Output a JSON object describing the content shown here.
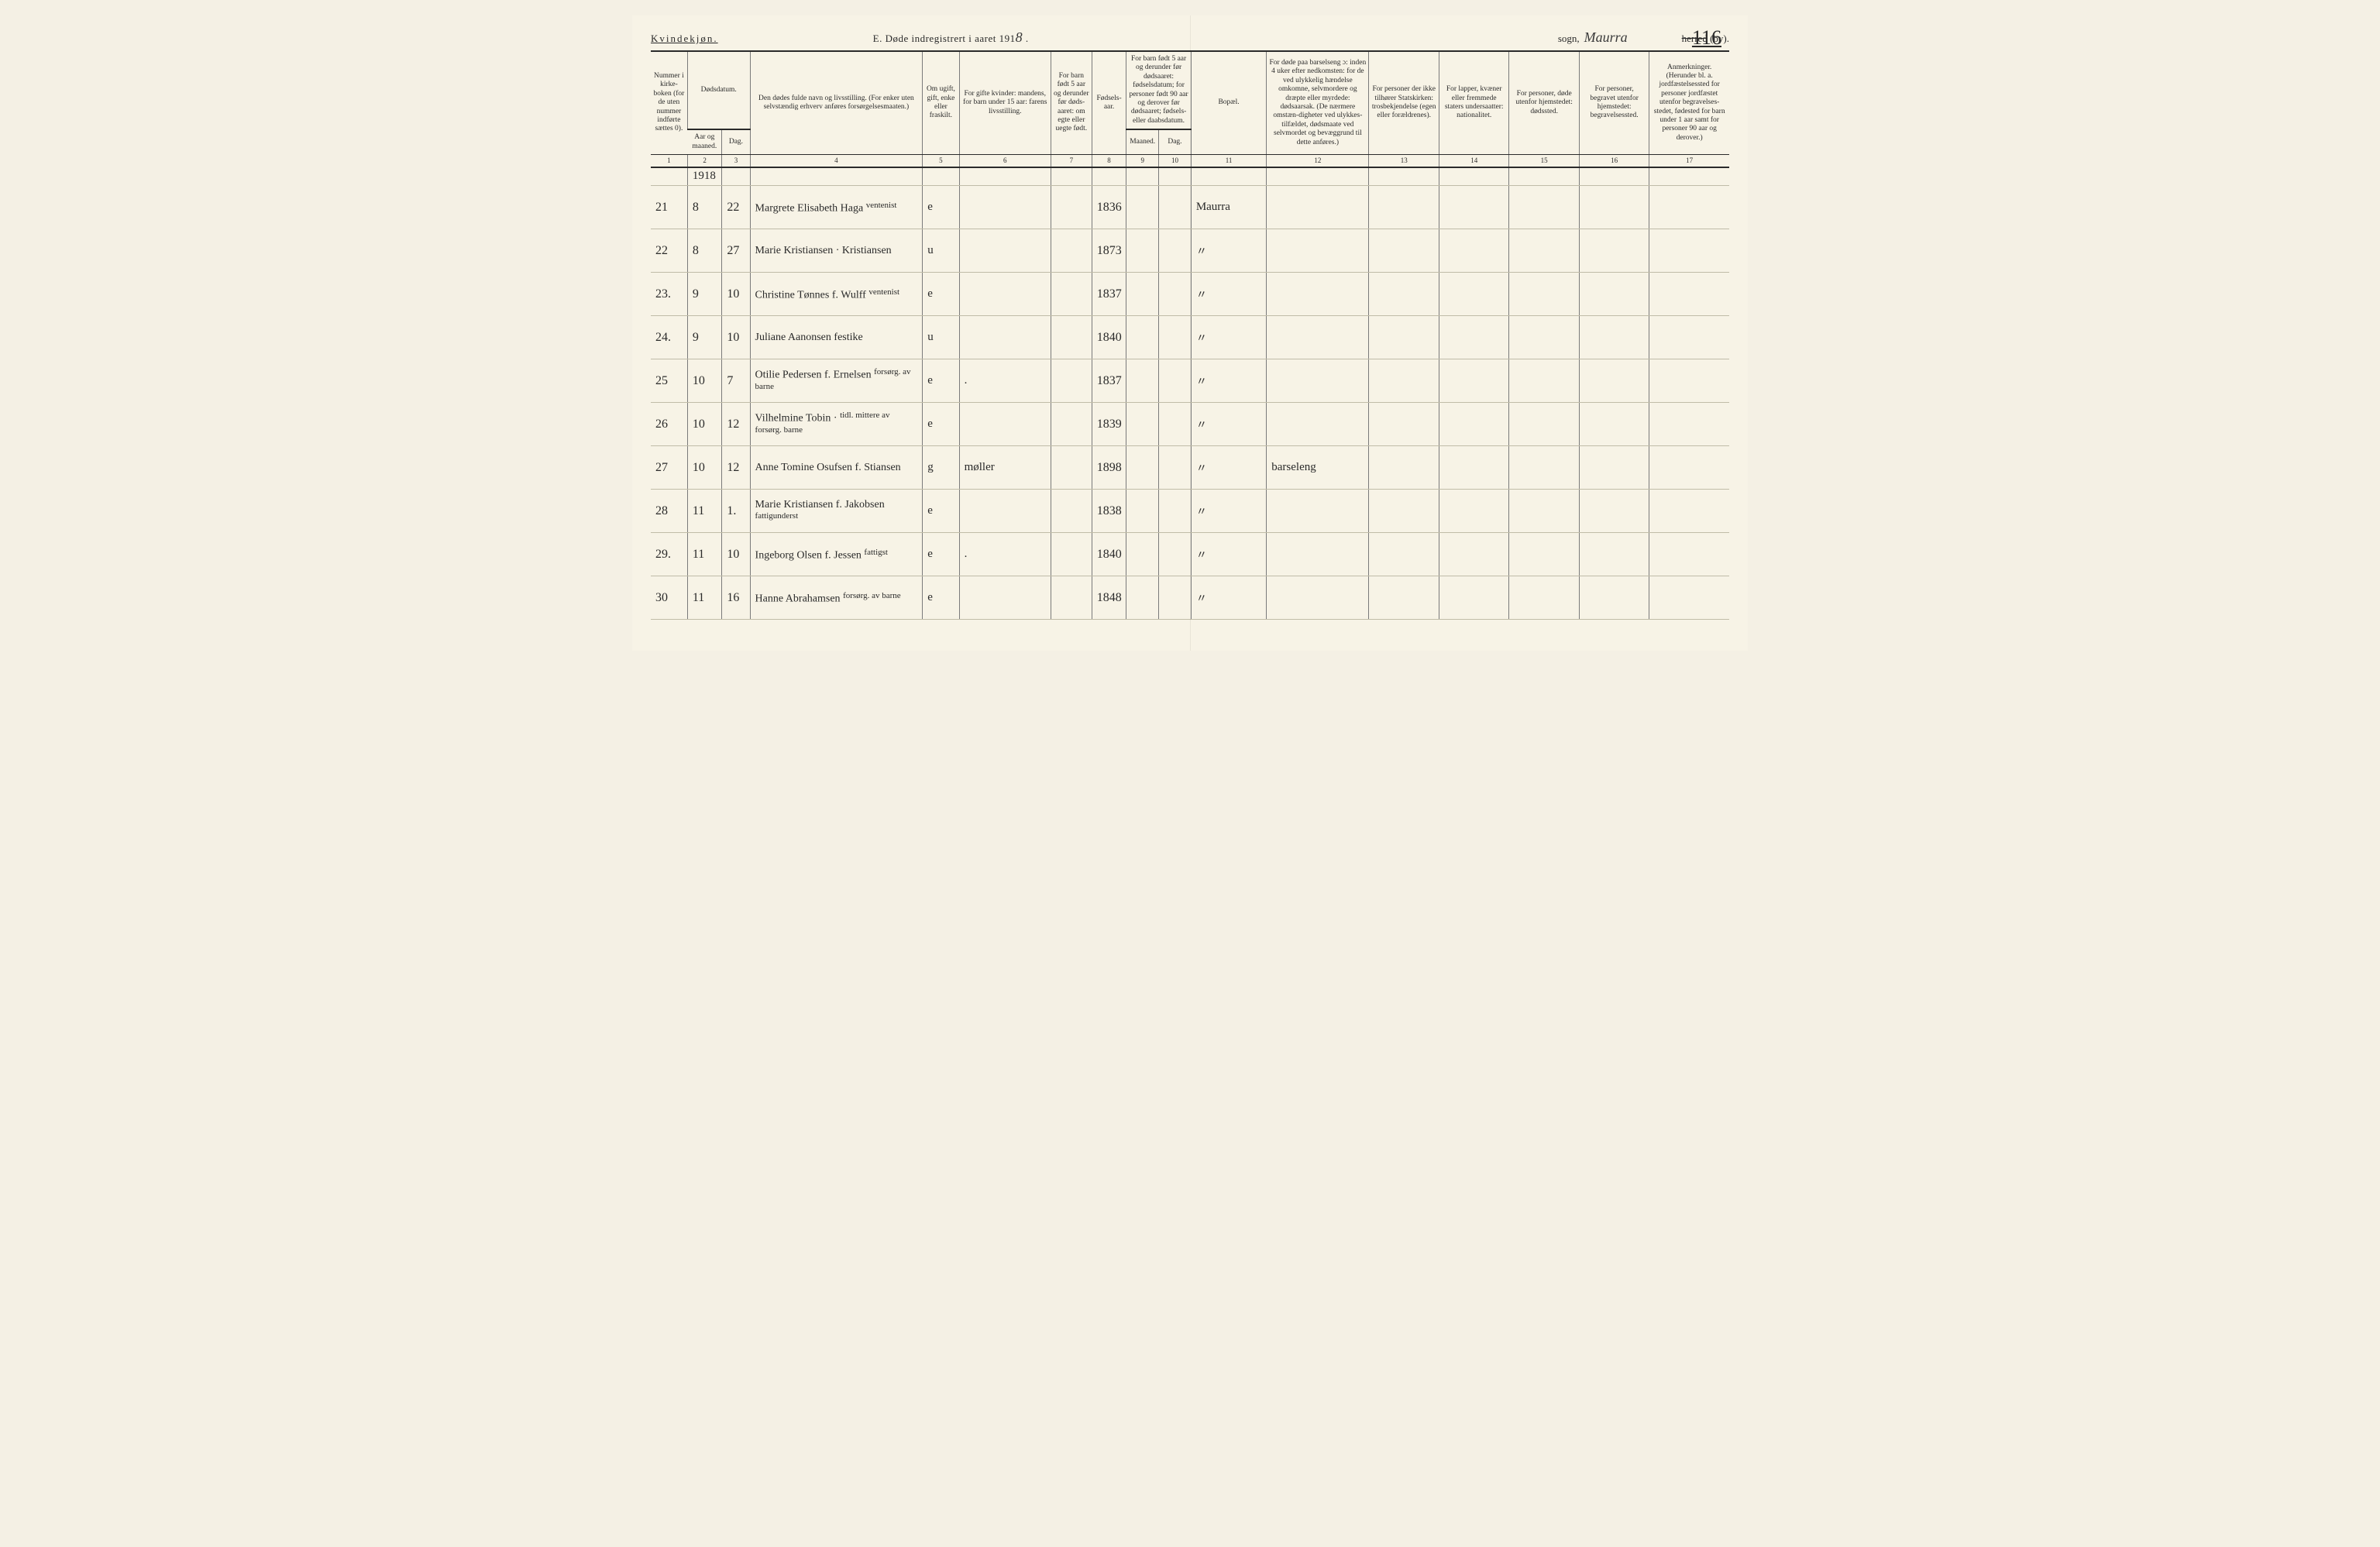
{
  "header": {
    "gender": "Kvindekjøn.",
    "title_prefix": "E.   Døde indregistrert i aaret 191",
    "title_year_digit": "8",
    "title_suffix": " .",
    "sogn_label": "sogn,",
    "sogn_handwritten": "Maurra",
    "herred_struck": "herred",
    "by_label": " (by).",
    "page_number": "116"
  },
  "columns": [
    {
      "num": "1",
      "label": "Nummer i kirke-boken (for de uten nummer indførte sættes 0)."
    },
    {
      "num": "2",
      "label": "Aar og maaned."
    },
    {
      "num": "3",
      "label": "Dag."
    },
    {
      "num": "",
      "label": "Dødsdatum.",
      "span": 2
    },
    {
      "num": "4",
      "label": "Den dødes fulde navn og livsstilling. (For enker uten selvstændig erhverv anføres forsørgelsesmaaten.)"
    },
    {
      "num": "5",
      "label": "Om ugift, gift, enke eller fraskilt."
    },
    {
      "num": "6",
      "label": "For gifte kvinder: mandens, for barn under 15 aar: farens livsstilling."
    },
    {
      "num": "7",
      "label": "For barn født 5 aar og derunder før døds-aaret: om egte eller uegte født."
    },
    {
      "num": "8",
      "label": "Fødsels-aar."
    },
    {
      "num": "9",
      "label": "Maaned."
    },
    {
      "num": "10",
      "label": "Dag."
    },
    {
      "num": "",
      "label": "For barn født 5 aar og derunder før dødsaaret: fødselsdatum; for personer født 90 aar og derover før dødsaaret; fødsels- eller daabsdatum.",
      "span": 2
    },
    {
      "num": "11",
      "label": "Bopæl."
    },
    {
      "num": "12",
      "label": "For døde paa barselseng ɔ: inden 4 uker efter nedkomsten: for de ved ulykkelig hændelse omkomne, selvmordere og dræpte eller myrdede: dødsaarsak. (De nærmere omstæn-digheter ved ulykkes-tilfældet, dødsmaate ved selvmordet og bevæggrund til dette anføres.)"
    },
    {
      "num": "13",
      "label": "For personer der ikke tilhører Statskirken: trosbekjendelse (egen eller forældrenes)."
    },
    {
      "num": "14",
      "label": "For lapper, kvæner eller fremmede staters undersaatter: nationalitet."
    },
    {
      "num": "15",
      "label": "For personer, døde utenfor hjemstedet: dødssted."
    },
    {
      "num": "16",
      "label": "For personer, begravet utenfor hjemstedet: begravelsessted."
    },
    {
      "num": "17",
      "label": "Anmerkninger. (Herunder bl. a. jordfæstelsessted for personer jordfæstet utenfor begravelses-stedet, fødested for barn under 1 aar samt for personer 90 aar og derover.)"
    }
  ],
  "year_row": "1918",
  "rows": [
    {
      "n": "21",
      "m": "8",
      "d": "22",
      "name": "Margrete Elisabeth Haga ",
      "status": "e",
      "spouse": "",
      "birth": "1836",
      "bopael": "Maurra",
      "cause": "",
      "note": "ventenist"
    },
    {
      "n": "22",
      "m": "8",
      "d": "27",
      "name": "Marie Kristiansen · Kristiansen",
      "status": "u",
      "spouse": "",
      "birth": "1873",
      "bopael": "",
      "cause": "",
      "note": ""
    },
    {
      "n": "23.",
      "m": "9",
      "d": "10",
      "name": "Christine Tønnes f. Wulff",
      "status": "e",
      "spouse": "",
      "birth": "1837",
      "bopael": "",
      "cause": "",
      "note": "ventenist"
    },
    {
      "n": "24.",
      "m": "9",
      "d": "10",
      "name": "Juliane Aanonsen   festike",
      "status": "u",
      "spouse": "",
      "birth": "1840",
      "bopael": "",
      "cause": "",
      "note": ""
    },
    {
      "n": "25",
      "m": "10",
      "d": "7",
      "name": "Otilie Pedersen f. Ernelsen",
      "status": "e",
      "spouse": ".",
      "birth": "1837",
      "bopael": "",
      "cause": "",
      "note": "forsørg. av barne"
    },
    {
      "n": "26",
      "m": "10",
      "d": "12",
      "name": "Vilhelmine Tobin ·",
      "status": "e",
      "spouse": "",
      "birth": "1839",
      "bopael": "",
      "cause": "",
      "note": "tidl. mittere av forsørg. barne"
    },
    {
      "n": "27",
      "m": "10",
      "d": "12",
      "name": "Anne Tomine Osufsen f. Stiansen",
      "status": "g",
      "spouse": "møller",
      "birth": "1898",
      "bopael": "",
      "cause": "barseleng",
      "note": ""
    },
    {
      "n": "28",
      "m": "11",
      "d": "1.",
      "name": "Marie Kristiansen f. Jakobsen",
      "status": "e",
      "spouse": "",
      "birth": "1838",
      "bopael": "",
      "cause": "",
      "note": "fattigunderst"
    },
    {
      "n": "29.",
      "m": "11",
      "d": "10",
      "name": "Ingeborg Olsen f. Jessen",
      "status": "e",
      "spouse": ".",
      "birth": "1840",
      "bopael": "",
      "cause": "",
      "note": "fattigst"
    },
    {
      "n": "30",
      "m": "11",
      "d": "16",
      "name": "Hanne Abrahamsen",
      "status": "e",
      "spouse": "",
      "birth": "1848",
      "bopael": "",
      "cause": "",
      "note": "forsørg. av barne"
    }
  ],
  "colors": {
    "page_bg": "#f7f3e6",
    "body_bg": "#f4f0e4",
    "rule": "#2a2a2a",
    "light_rule": "#c0bca8",
    "cell_border": "#7a7a7a",
    "text": "#2a2a2a"
  }
}
